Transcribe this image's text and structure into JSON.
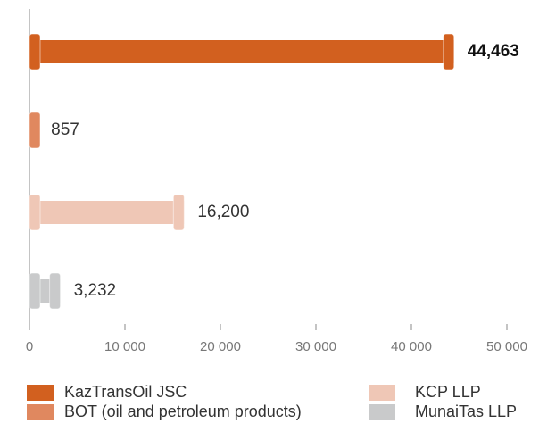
{
  "chart_data": {
    "type": "bar",
    "orientation": "horizontal",
    "categories": [
      "KazTransOil JSC",
      "BOT (oil and petroleum products)",
      "KCP LLP",
      "MunaiTas LLP"
    ],
    "values": [
      44463,
      857,
      16200,
      3232
    ],
    "value_labels": [
      "44,463",
      "857",
      "16,200",
      "3,232"
    ],
    "colors": [
      "#d2601f",
      "#e0885f",
      "#efc7b6",
      "#c9cacb"
    ],
    "xlim": [
      0,
      50000
    ],
    "xticks": [
      0,
      {
        "value": 10000,
        "label": "10 000"
      },
      {
        "value": 20000,
        "label": "20 000"
      },
      {
        "value": 30000,
        "label": "30 000"
      },
      {
        "value": 40000,
        "label": "40 000"
      },
      {
        "value": 50000,
        "label": "50 000"
      }
    ]
  }
}
